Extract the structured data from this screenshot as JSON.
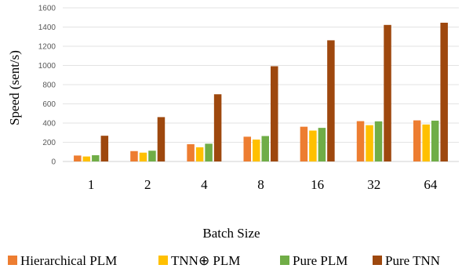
{
  "chart_data": {
    "type": "bar",
    "xlabel": "Batch Size",
    "ylabel": "Speed (sent/s)",
    "ylim": [
      0,
      1600
    ],
    "yticks": [
      0,
      200,
      400,
      600,
      800,
      1000,
      1200,
      1400,
      1600
    ],
    "categories": [
      "1",
      "2",
      "4",
      "8",
      "16",
      "32",
      "64"
    ],
    "series": [
      {
        "name": "Hierarchical PLM",
        "color": "#ED7D31",
        "values": [
          62,
          108,
          180,
          258,
          362,
          420,
          428
        ]
      },
      {
        "name": "TNN⊕ PLM",
        "color": "#FFC000",
        "values": [
          52,
          92,
          148,
          228,
          322,
          378,
          385
        ]
      },
      {
        "name": "Pure PLM",
        "color": "#70AD47",
        "values": [
          65,
          112,
          185,
          265,
          350,
          418,
          425
        ]
      },
      {
        "name": "Pure TNN",
        "color": "#9E480E",
        "values": [
          268,
          462,
          700,
          992,
          1262,
          1422,
          1445
        ]
      }
    ],
    "grid": "horizontal",
    "legend_position": "bottom"
  }
}
